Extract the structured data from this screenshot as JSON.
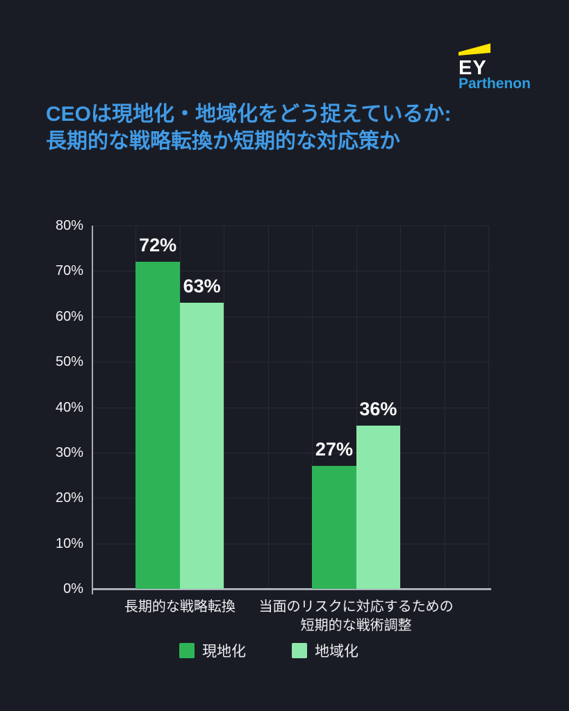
{
  "background": "#1a1c25",
  "logo": {
    "ey": "EY",
    "sub": "Parthenon",
    "beam_color": "#ffe600",
    "sub_color": "#2d9fe0",
    "beam_icon": "ey-beam-icon"
  },
  "title": {
    "line1": "CEOは現地化・地域化をどう捉えているか:",
    "line2": "長期的な戦略転換か短期的な対応策か",
    "color": "#419be6"
  },
  "chart_data": {
    "type": "bar",
    "title": "",
    "xlabel": "",
    "ylabel": "",
    "categories": [
      "長期的な戦略転換",
      "当面のリスクに対応するための短期的な戦術調整"
    ],
    "category_display_lines": [
      [
        "長期的な戦略転換"
      ],
      [
        "当面のリスクに対応するための",
        "短期的な戦術調整"
      ]
    ],
    "series": [
      {
        "name": "現地化",
        "color": "#2eb456",
        "values": [
          72,
          27
        ]
      },
      {
        "name": "地域化",
        "color": "#8de9ab",
        "values": [
          63,
          36
        ]
      }
    ],
    "value_suffix": "%",
    "ylim": [
      0,
      80
    ],
    "ytick_step": 10,
    "ytick_labels": [
      "0%",
      "10%",
      "20%",
      "30%",
      "40%",
      "50%",
      "60%",
      "70%",
      "80%"
    ],
    "grid": true,
    "legend_position": "bottom",
    "colors": {
      "grid": "#272b36",
      "axis": "#a9aeb8",
      "tick_text": "#f2f3f5",
      "value_text": "#fafafa"
    }
  }
}
